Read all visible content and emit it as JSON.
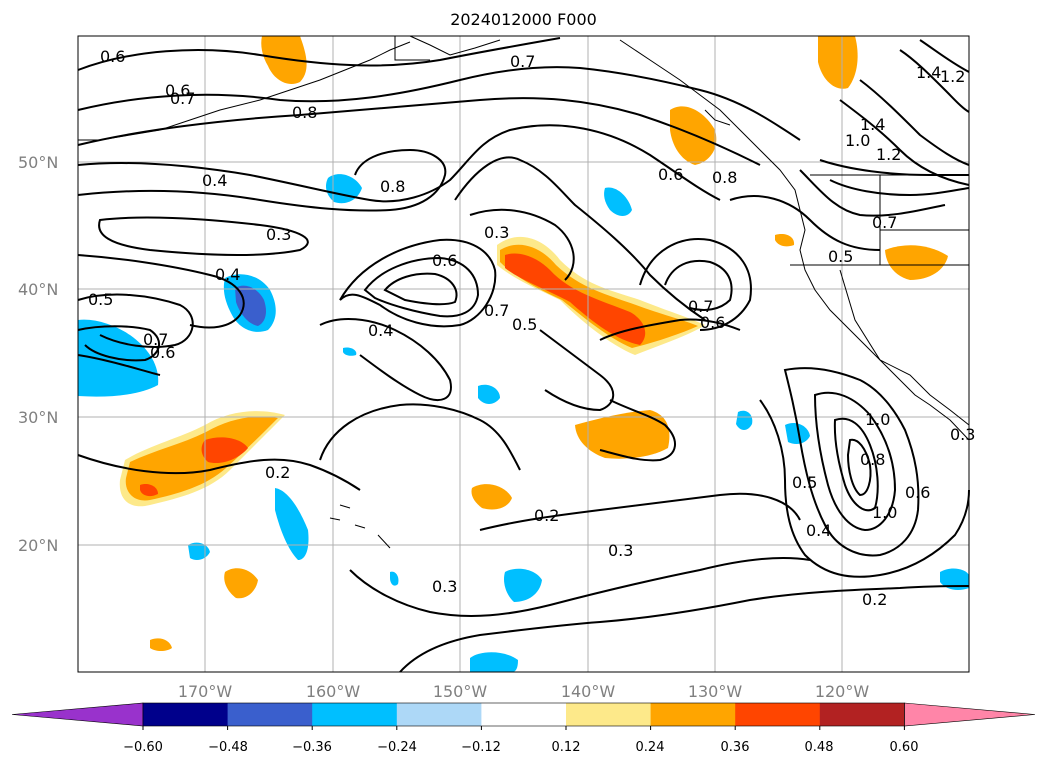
{
  "title": "2024012000 F000",
  "latitude_labels": [
    "50°N",
    "40°N",
    "30°N",
    "20°N"
  ],
  "longitude_labels": [
    "170°W",
    "160°W",
    "150°W",
    "140°W",
    "130°W",
    "120°W"
  ],
  "colorbar": {
    "ticks": [
      "−0.60",
      "−0.48",
      "−0.36",
      "−0.24",
      "−0.12",
      "0.12",
      "0.24",
      "0.36",
      "0.48",
      "0.60"
    ],
    "colors": [
      "#9932cc",
      "#00008b",
      "#3a5fcd",
      "#00bfff",
      "#add8f7",
      "#ffffff",
      "#fde98a",
      "#ffa500",
      "#ff4500",
      "#b22222",
      "#ff85a8"
    ]
  },
  "contour_labels": [
    "0.6",
    "0.7",
    "0.6",
    "0.7",
    "0.8",
    "0.4",
    "0.8",
    "0.3",
    "0.4",
    "0.5",
    "0.7",
    "0.6",
    "0.4",
    "0.6",
    "0.3",
    "0.7",
    "0.5",
    "0.6",
    "0.8",
    "0.7",
    "0.6",
    "1.4",
    "1.2",
    "1.4",
    "1.0",
    "1.2",
    "0.7",
    "0.5",
    "0.2",
    "0.2",
    "0.3",
    "0.3",
    "0.5",
    "0.4",
    "0.2",
    "1.0",
    "0.8",
    "1.0",
    "0.6",
    "0.3"
  ]
}
